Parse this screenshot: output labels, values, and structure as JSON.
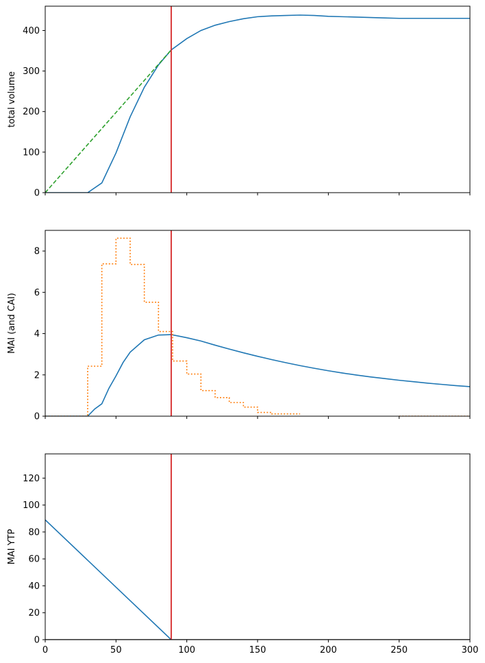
{
  "chart_data": [
    {
      "type": "line",
      "title": "",
      "xlabel": "",
      "ylabel": "total volume",
      "xlim": [
        0,
        300
      ],
      "ylim": [
        0,
        460
      ],
      "xticks": [
        0,
        50,
        100,
        150,
        200,
        250,
        300
      ],
      "xtick_labels_shown": false,
      "yticks": [
        0,
        100,
        200,
        300,
        400
      ],
      "grid": false,
      "vline": {
        "x": 89,
        "color": "#d62728"
      },
      "series": [
        {
          "color": "#1f77b4",
          "style": "solid",
          "x": [
            0,
            10,
            20,
            30,
            40,
            50,
            60,
            70,
            80,
            89,
            100,
            110,
            120,
            130,
            140,
            150,
            160,
            170,
            180,
            190,
            200,
            210,
            220,
            230,
            240,
            250,
            260,
            270,
            280,
            290,
            300
          ],
          "y": [
            0,
            0,
            0,
            0,
            24,
            98,
            187,
            260,
            315,
            352,
            380,
            400,
            413,
            422,
            429,
            434,
            436,
            437,
            438,
            437,
            435,
            434,
            433,
            432,
            431,
            430,
            430,
            430,
            430,
            430,
            430
          ]
        },
        {
          "color": "#2ca02c",
          "style": "dashed",
          "x": [
            0,
            89
          ],
          "y": [
            0,
            352
          ]
        }
      ]
    },
    {
      "type": "line",
      "title": "",
      "xlabel": "",
      "ylabel": "MAI (and CAI)",
      "xlim": [
        0,
        300
      ],
      "ylim": [
        0,
        9
      ],
      "xticks": [
        0,
        50,
        100,
        150,
        200,
        250,
        300
      ],
      "xtick_labels_shown": false,
      "yticks": [
        0,
        2,
        4,
        6,
        8
      ],
      "grid": false,
      "vline": {
        "x": 89,
        "color": "#d62728"
      },
      "series": [
        {
          "color": "#1f77b4",
          "style": "solid",
          "x": [
            0,
            10,
            20,
            30,
            35,
            40,
            45,
            50,
            55,
            60,
            70,
            80,
            89,
            100,
            110,
            120,
            130,
            140,
            150,
            160,
            170,
            180,
            190,
            200,
            210,
            220,
            230,
            240,
            250,
            260,
            270,
            280,
            290,
            300
          ],
          "y": [
            0,
            0,
            0,
            0,
            0.35,
            0.6,
            1.35,
            1.95,
            2.6,
            3.1,
            3.7,
            3.93,
            3.95,
            3.8,
            3.64,
            3.44,
            3.25,
            3.07,
            2.9,
            2.74,
            2.59,
            2.45,
            2.32,
            2.2,
            2.09,
            1.99,
            1.9,
            1.82,
            1.74,
            1.67,
            1.6,
            1.54,
            1.48,
            1.43
          ]
        },
        {
          "color": "#ff7f0e",
          "style": "dotted-step",
          "x": [
            0,
            30,
            30,
            40,
            40,
            50,
            50,
            60,
            60,
            70,
            70,
            80,
            80,
            90,
            90,
            100,
            100,
            110,
            110,
            120,
            120,
            130,
            130,
            140,
            140,
            150,
            150,
            160,
            160,
            170,
            170,
            180
          ],
          "y": [
            0,
            0,
            2.42,
            2.42,
            7.38,
            7.38,
            8.62,
            8.62,
            7.35,
            7.35,
            5.52,
            5.52,
            4.1,
            4.1,
            2.67,
            2.67,
            2.04,
            2.04,
            1.24,
            1.24,
            0.9,
            0.9,
            0.66,
            0.66,
            0.44,
            0.44,
            0.18,
            0.18,
            0.11,
            0.11,
            0.11,
            0.11
          ]
        },
        {
          "color": "#ff7f0e",
          "style": "dotted",
          "x": [
            250,
            300
          ],
          "y": [
            0,
            0
          ]
        }
      ]
    },
    {
      "type": "line",
      "title": "",
      "xlabel": "",
      "ylabel": "MAI YTP",
      "xlim": [
        0,
        300
      ],
      "ylim": [
        0,
        138
      ],
      "xticks": [
        0,
        50,
        100,
        150,
        200,
        250,
        300
      ],
      "xtick_labels_shown": true,
      "xtick_labels": [
        "0",
        "50",
        "100",
        "150",
        "200",
        "250",
        "300"
      ],
      "yticks": [
        0,
        20,
        40,
        60,
        80,
        100,
        120
      ],
      "grid": false,
      "vline": {
        "x": 89,
        "color": "#d62728"
      },
      "series": [
        {
          "color": "#1f77b4",
          "style": "solid",
          "x": [
            0,
            89
          ],
          "y": [
            89,
            0
          ]
        },
        {
          "color": "#000000",
          "style": "solid",
          "x": [
            0,
            300
          ],
          "y": [
            0,
            0
          ]
        }
      ]
    }
  ]
}
